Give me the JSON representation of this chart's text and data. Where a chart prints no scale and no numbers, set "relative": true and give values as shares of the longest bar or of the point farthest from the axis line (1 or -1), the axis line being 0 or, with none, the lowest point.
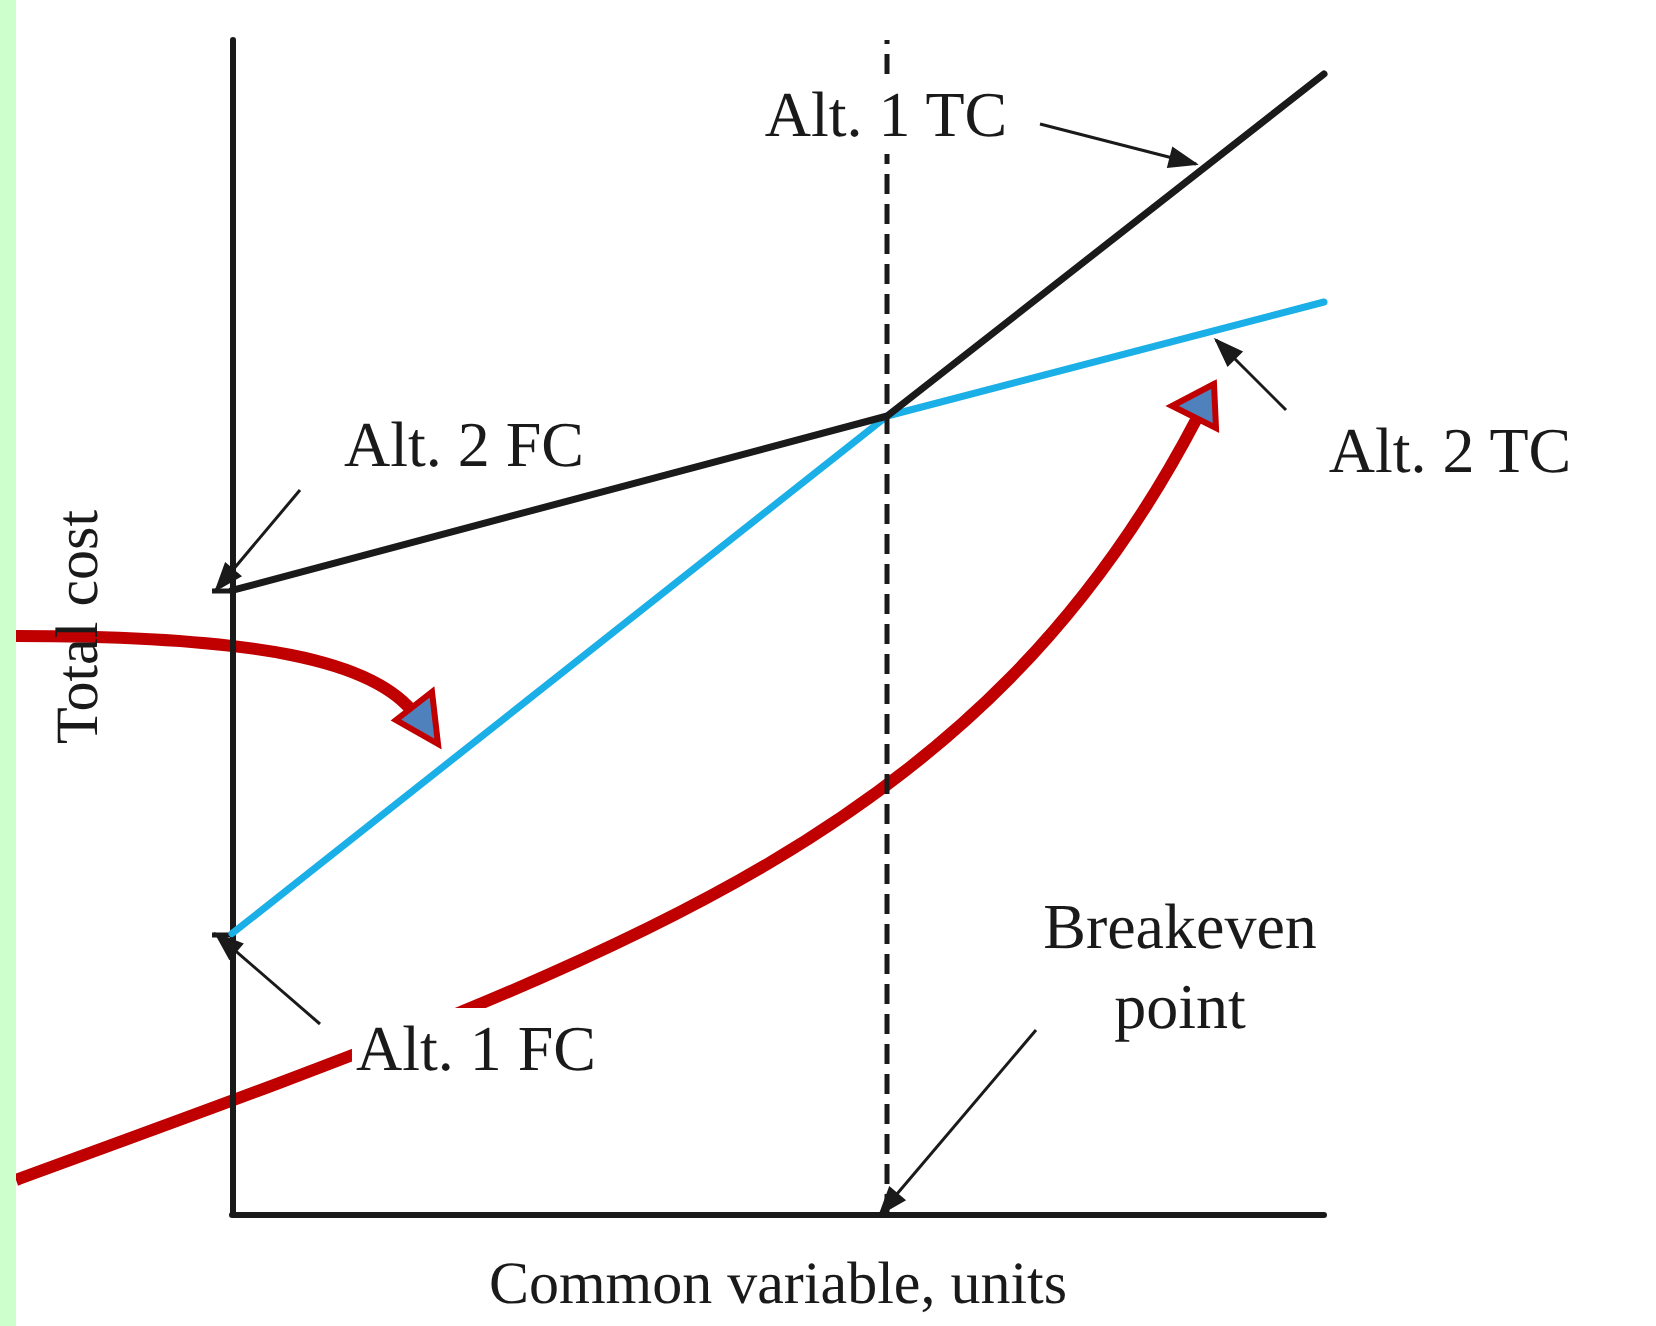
{
  "chart_data": {
    "type": "line",
    "relative": true,
    "xlabel": "Common variable, units",
    "ylabel": "Total cost",
    "categories": [
      null,
      null,
      null,
      null,
      null,
      null
    ],
    "series": [
      {
        "color": "#1a1a1a",
        "values": [
          0.547,
          null,
          null,
          0.7,
          null,
          1.0
        ]
      },
      {
        "color": "#1aafe6",
        "values": [
          0.246,
          null,
          null,
          0.7,
          null,
          0.8
        ]
      }
    ],
    "annotations": [
      "Alt. 1 TC",
      "Alt. 2 FC",
      "Alt. 2 TC",
      "Alt. 1 FC",
      "Breakeven\npoint"
    ],
    "grid": false,
    "marker": "none",
    "line_style": "solid"
  }
}
